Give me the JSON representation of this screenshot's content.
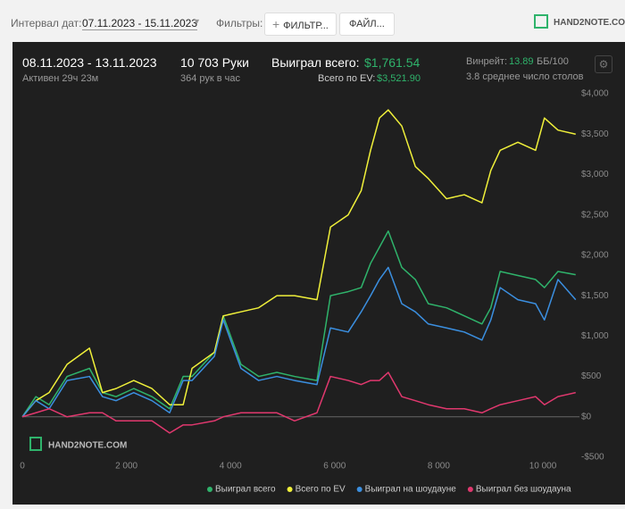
{
  "toolbar": {
    "date_label": "Интервал дат:",
    "date_range": "07.11.2023 - 15.11.2023",
    "filters_label": "Фильтры:",
    "filter_button": "ФИЛЬТР...",
    "file_button": "ФАЙЛ...",
    "logo": "HAND2NOTE.COM"
  },
  "stats": {
    "period": "08.11.2023 - 13.11.2023",
    "active": "Активен 29ч 23м",
    "hands": "10 703 Руки",
    "hands_per_hour": "364 рук в час",
    "won_label": "Выиграл всего:",
    "won_value": "$1,761.54",
    "ev_label": "Всего по EV:",
    "ev_value": "$3,521.90",
    "winrate_label": "Винрейт:",
    "winrate_value": "13.89",
    "winrate_unit": "ББ/100",
    "tables": "3.8 среднее число столов"
  },
  "chart_data": {
    "type": "line",
    "watermark": "HAND2NOTE.COM",
    "x": [
      0,
      260,
      515,
      860,
      1290,
      1540,
      1800,
      2140,
      2490,
      2830,
      3090,
      3260,
      3690,
      3860,
      4200,
      4540,
      4890,
      5230,
      5660,
      5920,
      6260,
      6510,
      6690,
      6860,
      7030,
      7290,
      7550,
      7800,
      8150,
      8490,
      8830,
      9000,
      9180,
      9520,
      9860,
      10030,
      10290,
      10630
    ],
    "series": [
      {
        "name": "Выиграл всего",
        "color": "#2fb36b",
        "values": [
          0,
          250,
          150,
          500,
          600,
          300,
          250,
          350,
          250,
          100,
          500,
          500,
          800,
          1250,
          650,
          500,
          550,
          500,
          450,
          1500,
          1550,
          1600,
          1900,
          2100,
          2300,
          1850,
          1700,
          1400,
          1350,
          1250,
          1150,
          1350,
          1800,
          1750,
          1700,
          1600,
          1800,
          1760
        ]
      },
      {
        "name": "Всего по EV",
        "color": "#f0f03a",
        "values": [
          0,
          200,
          300,
          650,
          850,
          300,
          350,
          450,
          350,
          150,
          150,
          600,
          800,
          1250,
          1300,
          1350,
          1500,
          1500,
          1450,
          2350,
          2500,
          2800,
          3300,
          3700,
          3800,
          3600,
          3100,
          2950,
          2700,
          2750,
          2650,
          3050,
          3300,
          3400,
          3300,
          3700,
          3550,
          3500
        ]
      },
      {
        "name": "Выиграл на шоудауне",
        "color": "#3b8fe0",
        "values": [
          0,
          200,
          100,
          450,
          500,
          250,
          200,
          300,
          200,
          50,
          450,
          450,
          750,
          1200,
          600,
          450,
          500,
          450,
          400,
          1100,
          1050,
          1300,
          1500,
          1700,
          1850,
          1400,
          1300,
          1150,
          1100,
          1050,
          950,
          1200,
          1600,
          1450,
          1400,
          1200,
          1700,
          1450
        ]
      },
      {
        "name": "Выиграл без шоудауна",
        "color": "#e0386e",
        "values": [
          0,
          50,
          100,
          0,
          50,
          50,
          -50,
          -50,
          -50,
          -200,
          -100,
          -100,
          -50,
          0,
          50,
          50,
          50,
          -50,
          50,
          500,
          450,
          400,
          450,
          450,
          550,
          250,
          200,
          150,
          100,
          100,
          50,
          100,
          150,
          200,
          250,
          150,
          250,
          300
        ]
      }
    ],
    "xlim": [
      0,
      10703
    ],
    "xticks": [
      0,
      {
        "value": 2000,
        "label": "2 000"
      },
      {
        "value": 4000,
        "label": "4 000"
      },
      {
        "value": 6000,
        "label": "6 000"
      },
      {
        "value": 8000,
        "label": "8 000"
      },
      {
        "value": 10000,
        "label": "10 000"
      }
    ],
    "ylim": [
      -500,
      4000
    ],
    "yticks": [
      {
        "value": -500,
        "label": "-$500"
      },
      {
        "value": 0,
        "label": "$0"
      },
      {
        "value": 500,
        "label": "$500"
      },
      {
        "value": 1000,
        "label": "$1,000"
      },
      {
        "value": 1500,
        "label": "$1,500"
      },
      {
        "value": 2000,
        "label": "$2,000"
      },
      {
        "value": 2500,
        "label": "$2,500"
      },
      {
        "value": 3000,
        "label": "$3,000"
      },
      {
        "value": 3500,
        "label": "$3,500"
      },
      {
        "value": 4000,
        "label": "$4,000"
      }
    ],
    "grid": false,
    "legend": "bottom"
  }
}
